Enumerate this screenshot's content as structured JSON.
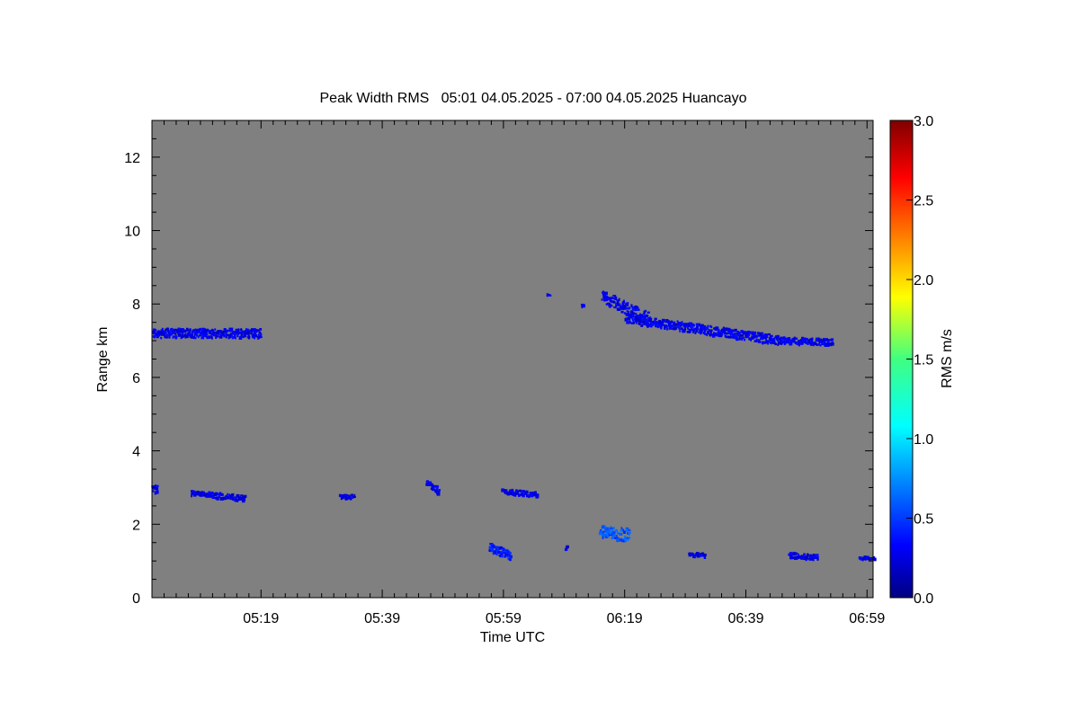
{
  "chart_data": {
    "type": "heatmap",
    "title": "Peak Width RMS   05:01 04.05.2025 - 07:00 04.05.2025 Huancayo",
    "xlabel": "Time UTC",
    "ylabel": "Range km",
    "colorbar_label": "RMS m/s",
    "x_range_minutes": [
      301,
      420
    ],
    "x_tick_values": [
      319,
      339,
      359,
      379,
      399,
      419
    ],
    "x_tick_labels": [
      "05:19",
      "05:39",
      "05:59",
      "06:19",
      "06:39",
      "06:59"
    ],
    "ylim": [
      0,
      13
    ],
    "y_ticks": [
      0,
      2,
      4,
      6,
      8,
      10,
      12
    ],
    "y_tick_labels": [
      "0",
      "2",
      "4",
      "6",
      "8",
      "10",
      "12"
    ],
    "colorbar_range": [
      0,
      3
    ],
    "colorbar_ticks": [
      0,
      0.5,
      1.0,
      1.5,
      2.0,
      2.5,
      3.0
    ],
    "colorbar_tick_labels": [
      "0.0",
      "0.5",
      "1.0",
      "1.5",
      "2.0",
      "2.5",
      "3.0"
    ],
    "background_color": "#808080",
    "colormap": "jet",
    "features": [
      {
        "t_start": 301.0,
        "t_end": 318.8,
        "r_start": 7.2,
        "r_end": 7.2,
        "thickness": 0.25,
        "value": 0.3
      },
      {
        "t_start": 301.0,
        "t_end": 301.8,
        "r_start": 2.95,
        "r_end": 2.95,
        "thickness": 0.2,
        "value": 0.3
      },
      {
        "t_start": 307.3,
        "t_end": 316.1,
        "r_start": 2.85,
        "r_end": 2.7,
        "thickness": 0.15,
        "value": 0.3
      },
      {
        "t_start": 331.9,
        "t_end": 334.2,
        "r_start": 2.75,
        "r_end": 2.75,
        "thickness": 0.1,
        "value": 0.3
      },
      {
        "t_start": 346.2,
        "t_end": 348.3,
        "r_start": 3.15,
        "r_end": 2.85,
        "thickness": 0.2,
        "value": 0.3
      },
      {
        "t_start": 358.6,
        "t_end": 364.5,
        "r_start": 2.9,
        "r_end": 2.8,
        "thickness": 0.12,
        "value": 0.3
      },
      {
        "t_start": 356.5,
        "t_end": 360.1,
        "r_start": 1.35,
        "r_end": 1.15,
        "thickness": 0.25,
        "value": 0.4
      },
      {
        "t_start": 366.2,
        "t_end": 366.5,
        "r_start": 8.25,
        "r_end": 8.25,
        "thickness": 0.08,
        "value": 0.3
      },
      {
        "t_start": 371.7,
        "t_end": 371.9,
        "r_start": 7.95,
        "r_end": 7.95,
        "thickness": 0.05,
        "value": 0.3
      },
      {
        "t_start": 369.1,
        "t_end": 369.4,
        "r_start": 1.35,
        "r_end": 1.35,
        "thickness": 0.08,
        "value": 0.3
      },
      {
        "t_start": 375.1,
        "t_end": 382.9,
        "r_start": 8.2,
        "r_end": 7.6,
        "thickness": 0.35,
        "value": 0.3
      },
      {
        "t_start": 379.0,
        "t_end": 404.5,
        "r_start": 7.6,
        "r_end": 7.0,
        "thickness": 0.25,
        "value": 0.3
      },
      {
        "t_start": 404.5,
        "t_end": 413.0,
        "r_start": 7.0,
        "r_end": 6.95,
        "thickness": 0.18,
        "value": 0.3
      },
      {
        "t_start": 374.8,
        "t_end": 379.6,
        "r_start": 1.8,
        "r_end": 1.7,
        "thickness": 0.35,
        "value": 0.6
      },
      {
        "t_start": 389.4,
        "t_end": 392.1,
        "r_start": 1.18,
        "r_end": 1.15,
        "thickness": 0.1,
        "value": 0.3
      },
      {
        "t_start": 406.0,
        "t_end": 410.8,
        "r_start": 1.15,
        "r_end": 1.1,
        "thickness": 0.15,
        "value": 0.3
      },
      {
        "t_start": 417.7,
        "t_end": 420.0,
        "r_start": 1.08,
        "r_end": 1.08,
        "thickness": 0.08,
        "value": 0.3
      }
    ]
  }
}
